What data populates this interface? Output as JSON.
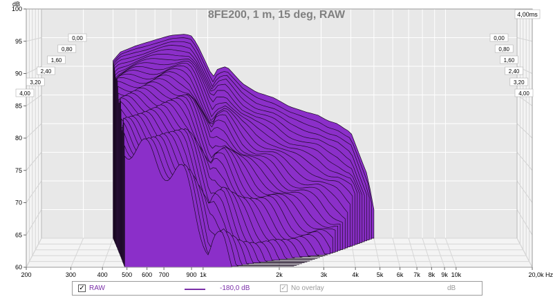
{
  "chart_data": {
    "type": "area",
    "title": "8FE200, 1 m, 15 deg, RAW",
    "ylabel": "dB",
    "xlabel": "Hz",
    "x_scale": "log",
    "xlim": [
      200,
      20000
    ],
    "ylim": [
      60,
      100
    ],
    "x_ticks": [
      "200",
      "300",
      "400",
      "500",
      "600",
      "700",
      "900",
      "1k",
      "2k",
      "3k",
      "4k",
      "5k",
      "6k",
      "7k",
      "8k",
      "9k",
      "10k",
      "20,0k Hz"
    ],
    "x_tick_values": [
      200,
      300,
      400,
      500,
      600,
      700,
      900,
      1000,
      2000,
      3000,
      4000,
      5000,
      6000,
      7000,
      8000,
      9000,
      10000,
      20000
    ],
    "y_ticks": [
      "60",
      "65",
      "70",
      "75",
      "80",
      "85",
      "90",
      "95",
      "100"
    ],
    "y_tick_values": [
      60,
      65,
      70,
      75,
      80,
      85,
      90,
      95,
      100
    ],
    "time_ticks_left": [
      "0,00",
      "0,80",
      "1,60",
      "2,40",
      "3,20",
      "4,00"
    ],
    "time_ticks_right": [
      "0,00",
      "0,80",
      "1,60",
      "2,40",
      "3,20",
      "4,00"
    ],
    "time_label": "4,00ms",
    "time_range_ms": [
      0,
      4
    ],
    "grid": true,
    "fill_color": "#8b2fc9",
    "stroke_color": "#1a0a22",
    "slice_count": 34,
    "series": [
      {
        "name": "RAW",
        "time_ms": 0,
        "x": [
          400,
          430,
          500,
          600,
          700,
          800,
          850,
          900,
          1000,
          1050,
          1100,
          1200,
          1400,
          1600,
          1900,
          2200,
          2600,
          2900,
          3200,
          3500,
          3800,
          4000,
          4400,
          4700,
          5000
        ],
        "y": [
          91,
          92.5,
          93.6,
          94.6,
          95.4,
          95.6,
          95.4,
          94,
          90,
          88,
          89.5,
          90,
          87,
          85.5,
          84.5,
          83,
          82,
          81.5,
          80.5,
          80,
          79,
          78.5,
          74,
          71,
          65
        ]
      }
    ]
  },
  "legend": {
    "raw_label": "RAW",
    "raw_checked": "✓",
    "raw_value": "-180,0 dB",
    "raw_color": "#7a2ea8",
    "overlay_label": "No overlay",
    "overlay_checked": "✓",
    "overlay_unit": "dB"
  }
}
